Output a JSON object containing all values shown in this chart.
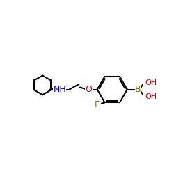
{
  "background": "#ffffff",
  "bond_color": "#000000",
  "bond_lw": 1.5,
  "atom_colors": {
    "N": "#0000cc",
    "O": "#cc0000",
    "F": "#808000",
    "B": "#8B7000",
    "OH": "#cc0000",
    "C": "#000000"
  },
  "font_size": 9,
  "font_size_small": 8
}
